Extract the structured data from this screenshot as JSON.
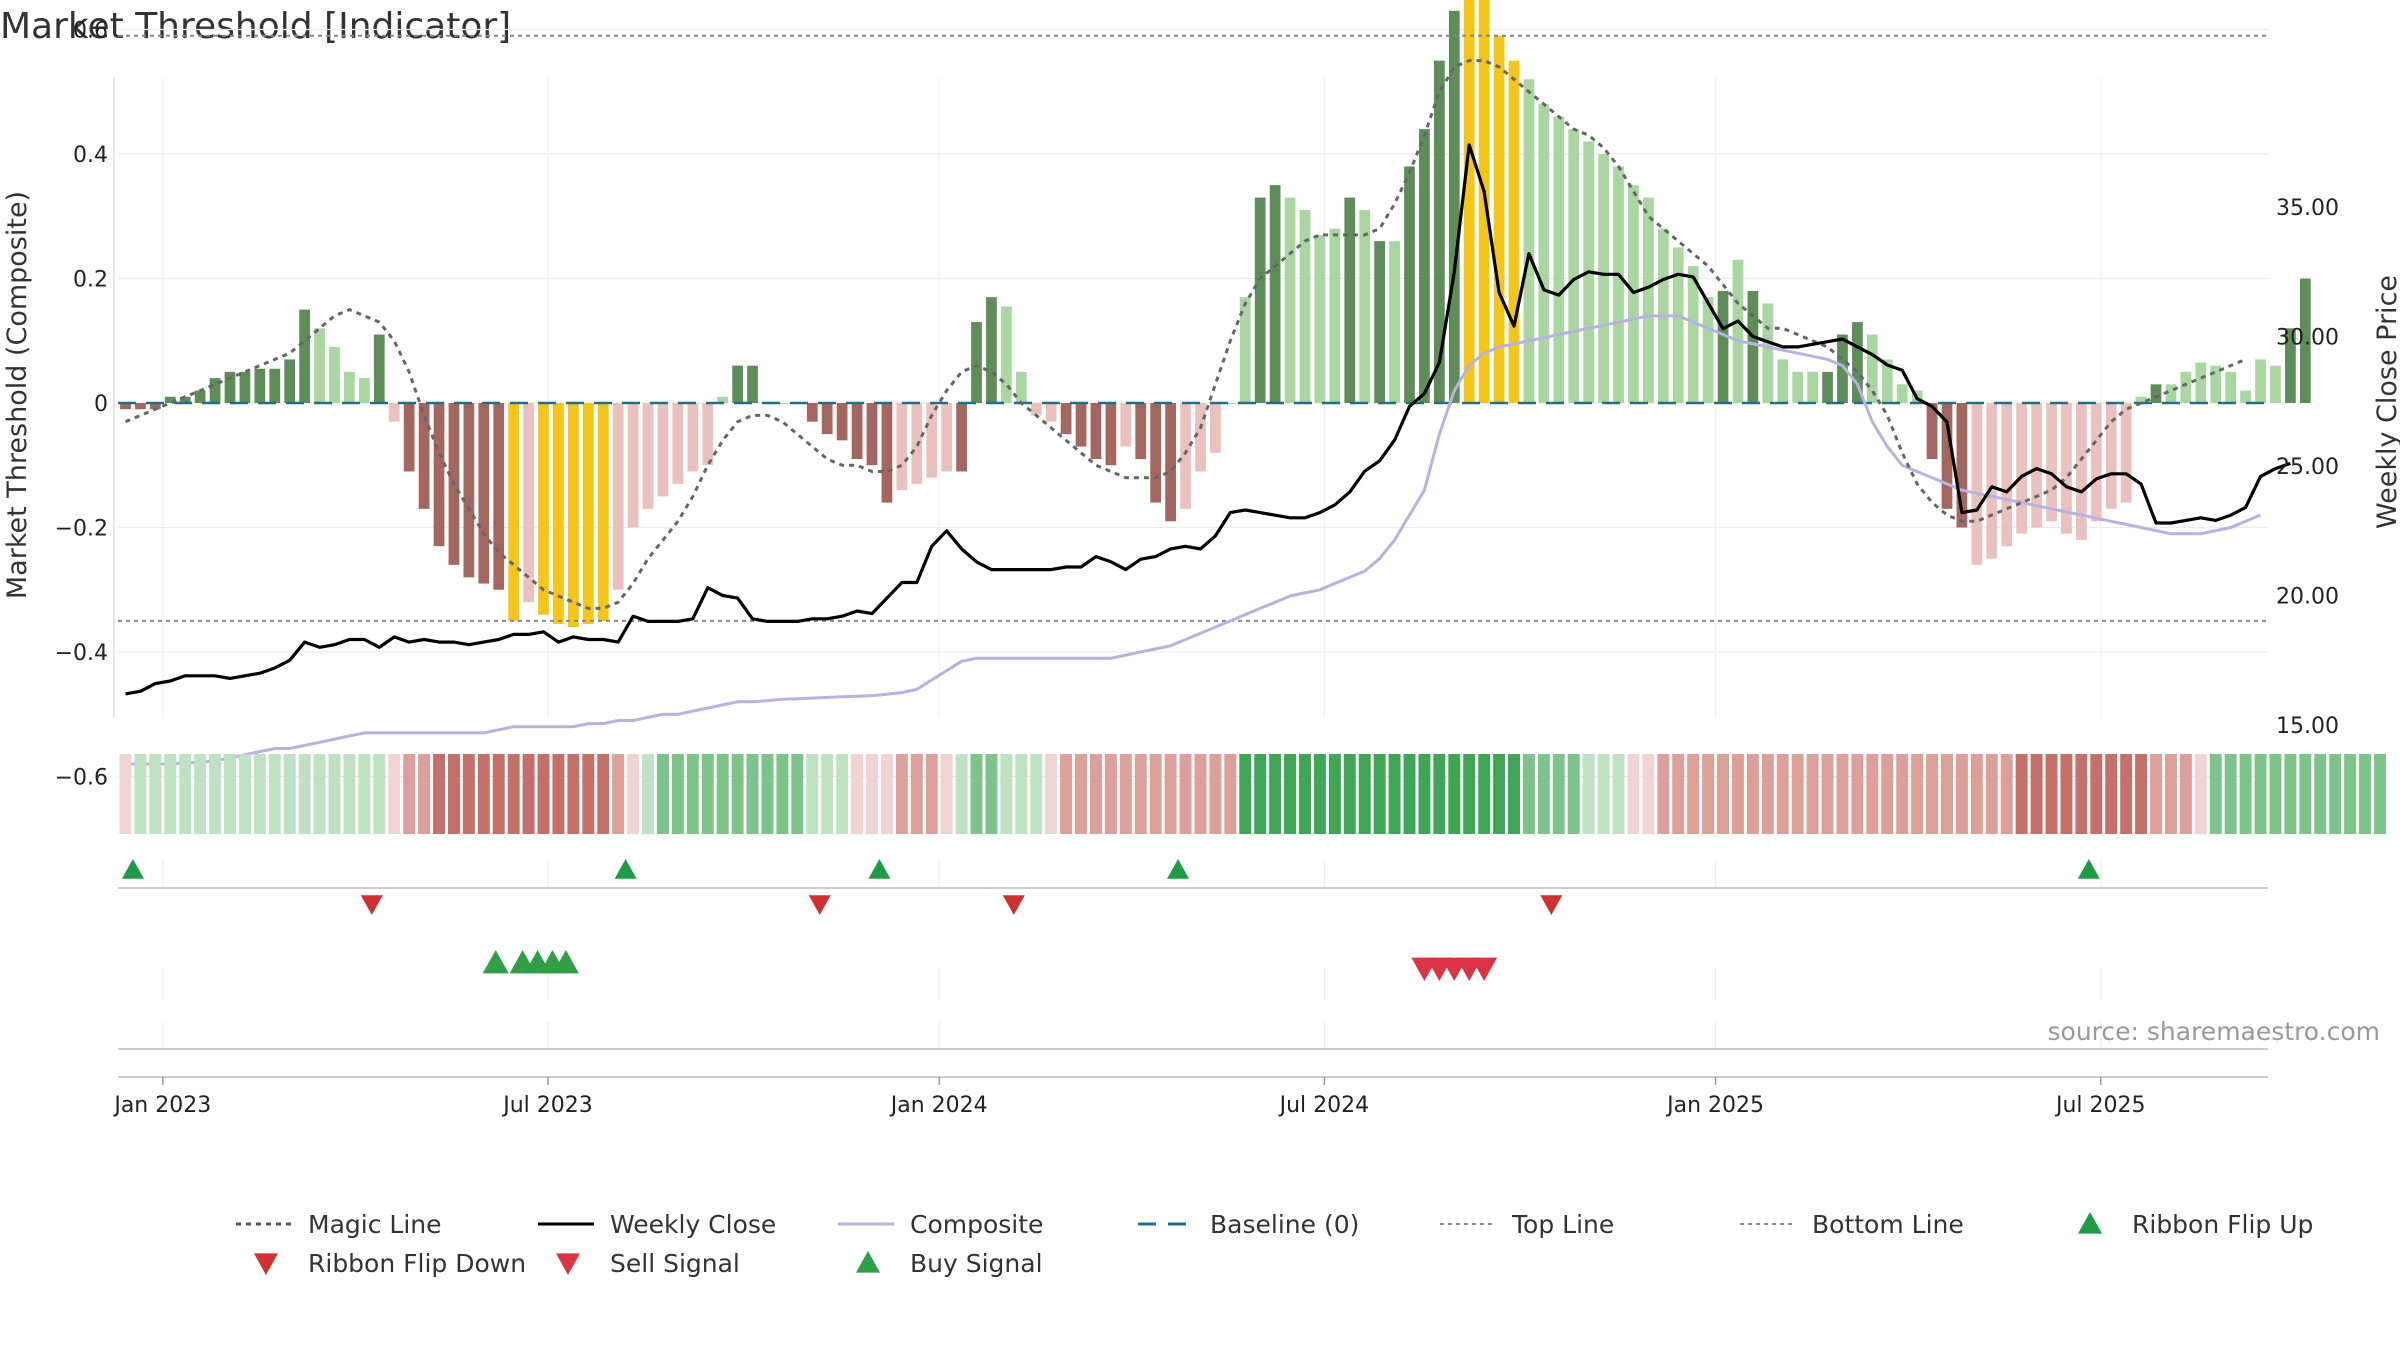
{
  "chart_data": {
    "type": "bar",
    "title": "Market Threshold [Indicator]",
    "ylabel_left": "Market Threshold (Composite)",
    "ylabel_right": "Weekly Close Price",
    "ylim_left": [
      -0.78,
      0.78
    ],
    "ylim_right": [
      15.0,
      39.8
    ],
    "yticks_left": [
      "0.6",
      "0.4",
      "0.2",
      "0",
      "−0.2",
      "−0.4",
      "−0.6"
    ],
    "yticks_left_values": [
      0.6,
      0.4,
      0.2,
      0,
      -0.2,
      -0.4,
      -0.6
    ],
    "yticks_right": [
      "35.00",
      "30.00",
      "25.00",
      "20.00",
      "15.00"
    ],
    "yticks_right_values": [
      35,
      30,
      25,
      20,
      15
    ],
    "xticks": [
      "Jan 2023",
      "Jul 2023",
      "Jan 2024",
      "Jul 2024",
      "Jan 2025",
      "Jul 2025"
    ],
    "xtick_weeks": [
      3,
      28.8,
      55,
      80.8,
      107,
      132.8
    ],
    "grid": true,
    "top_line": 0.59,
    "bottom_line": -0.35,
    "baseline": 0,
    "weeks_total": 144,
    "composite_bars": [
      -0.01,
      -0.01,
      -0.01,
      0.01,
      0.01,
      0.02,
      0.04,
      0.05,
      0.05,
      0.055,
      0.055,
      0.07,
      0.15,
      0.12,
      0.09,
      0.05,
      0.04,
      0.11,
      -0.03,
      -0.11,
      -0.17,
      -0.23,
      -0.26,
      -0.28,
      -0.29,
      -0.3,
      -0.35,
      -0.32,
      -0.34,
      -0.355,
      -0.36,
      -0.355,
      -0.35,
      -0.3,
      -0.2,
      -0.17,
      -0.15,
      -0.13,
      -0.11,
      -0.1,
      0.01,
      0.06,
      0.06,
      0,
      0,
      0,
      -0.03,
      -0.05,
      -0.06,
      -0.09,
      -0.1,
      -0.16,
      -0.14,
      -0.13,
      -0.12,
      -0.11,
      -0.11,
      0.13,
      0.17,
      0.155,
      0.05,
      -0.02,
      -0.03,
      -0.05,
      -0.07,
      -0.09,
      -0.1,
      -0.07,
      -0.09,
      -0.16,
      -0.19,
      -0.17,
      -0.11,
      -0.08,
      0,
      0.17,
      0.33,
      0.35,
      0.33,
      0.31,
      0.27,
      0.28,
      0.33,
      0.31,
      0.26,
      0.26,
      0.38,
      0.44,
      0.55,
      0.63,
      0.71,
      0.66,
      0.59,
      0.55,
      0.52,
      0.48,
      0.46,
      0.44,
      0.42,
      0.4,
      0.38,
      0.35,
      0.33,
      0.28,
      0.25,
      0.22,
      0.17,
      0.18,
      0.23,
      0.18,
      0.16,
      0.07,
      0.05,
      0.05,
      0.05,
      0.11,
      0.13,
      0.11,
      0.07,
      0.03,
      0.02,
      -0.09,
      -0.17,
      -0.2,
      -0.26,
      -0.25,
      -0.23,
      -0.21,
      -0.2,
      -0.19,
      -0.21,
      -0.22,
      -0.19,
      -0.17,
      -0.16,
      0.01,
      0.03,
      0.03,
      0.05,
      0.065,
      0.06,
      0.05,
      0.02,
      0.07,
      0.06,
      0.12,
      0.2
    ],
    "bar_style": "d,d,d,d,d,d,d,d,d,d,d,d,d,l,l,l,l,d,l,d,d,d,d,d,d,d,y,l,y,y,y,y,y,l,l,l,l,l,l,l,l,d,d,l,l,l,d,d,d,d,d,d,l,l,l,l,d,d,d,l,l,l,l,d,d,d,d,l,d,d,d,l,l,l,l,l,d,d,l,l,l,l,d,l,d,l,d,d,d,d,y,y,y,y,l,l,l,l,l,l,l,l,l,l,l,l,l,d,l,d,l,l,l,l,d,d,d,l,l,l,l,d,d,d,l,l,l,l,l,l,l,l,l,l,l,l,d,l,l,l,l,l,l,l,l,d,d",
    "magic_line": [
      -0.03,
      -0.02,
      -0.01,
      0.0,
      0.01,
      0.02,
      0.03,
      0.04,
      0.05,
      0.06,
      0.07,
      0.08,
      0.1,
      0.12,
      0.14,
      0.15,
      0.14,
      0.13,
      0.1,
      0.05,
      -0.02,
      -0.08,
      -0.13,
      -0.17,
      -0.21,
      -0.24,
      -0.26,
      -0.28,
      -0.3,
      -0.31,
      -0.32,
      -0.33,
      -0.33,
      -0.32,
      -0.29,
      -0.25,
      -0.22,
      -0.19,
      -0.15,
      -0.1,
      -0.06,
      -0.03,
      -0.02,
      -0.02,
      -0.03,
      -0.05,
      -0.07,
      -0.09,
      -0.1,
      -0.1,
      -0.11,
      -0.11,
      -0.1,
      -0.07,
      -0.02,
      0.02,
      0.05,
      0.06,
      0.05,
      0.03,
      0.0,
      -0.02,
      -0.04,
      -0.06,
      -0.08,
      -0.1,
      -0.11,
      -0.12,
      -0.12,
      -0.12,
      -0.11,
      -0.08,
      -0.04,
      0.03,
      0.1,
      0.16,
      0.2,
      0.22,
      0.24,
      0.26,
      0.27,
      0.27,
      0.27,
      0.27,
      0.28,
      0.32,
      0.37,
      0.43,
      0.5,
      0.54,
      0.55,
      0.55,
      0.54,
      0.52,
      0.5,
      0.48,
      0.46,
      0.44,
      0.43,
      0.41,
      0.38,
      0.34,
      0.3,
      0.28,
      0.26,
      0.24,
      0.22,
      0.19,
      0.16,
      0.14,
      0.12,
      0.12,
      0.11,
      0.1,
      0.09,
      0.07,
      0.05,
      0.02,
      -0.02,
      -0.08,
      -0.13,
      -0.16,
      -0.18,
      -0.19,
      -0.19,
      -0.18,
      -0.17,
      -0.16,
      -0.15,
      -0.14,
      -0.12,
      -0.09,
      -0.06,
      -0.03,
      -0.01,
      0.0,
      0.01,
      0.02,
      0.03,
      0.04,
      0.05,
      0.06,
      0.07
    ],
    "composite_line": [
      -0.58,
      -0.58,
      -0.58,
      -0.58,
      -0.578,
      -0.577,
      -0.575,
      -0.57,
      -0.565,
      -0.56,
      -0.555,
      -0.555,
      -0.55,
      -0.545,
      -0.54,
      -0.535,
      -0.53,
      -0.53,
      -0.53,
      -0.53,
      -0.53,
      -0.53,
      -0.53,
      -0.53,
      -0.53,
      -0.525,
      -0.52,
      -0.52,
      -0.52,
      -0.52,
      -0.52,
      -0.515,
      -0.515,
      -0.51,
      -0.51,
      -0.505,
      -0.5,
      -0.5,
      -0.495,
      -0.49,
      -0.485,
      -0.48,
      -0.48,
      -0.478,
      -0.476,
      -0.475,
      -0.474,
      -0.473,
      -0.472,
      -0.471,
      -0.47,
      -0.468,
      -0.465,
      -0.46,
      -0.445,
      -0.43,
      -0.415,
      -0.41,
      -0.41,
      -0.41,
      -0.41,
      -0.41,
      -0.41,
      -0.41,
      -0.41,
      -0.41,
      -0.41,
      -0.405,
      -0.4,
      -0.395,
      -0.39,
      -0.38,
      -0.37,
      -0.36,
      -0.35,
      -0.34,
      -0.33,
      -0.32,
      -0.31,
      -0.305,
      -0.3,
      -0.29,
      -0.28,
      -0.27,
      -0.25,
      -0.22,
      -0.18,
      -0.14,
      -0.05,
      0.02,
      0.06,
      0.08,
      0.09,
      0.095,
      0.1,
      0.105,
      0.11,
      0.115,
      0.12,
      0.125,
      0.13,
      0.135,
      0.14,
      0.14,
      0.14,
      0.13,
      0.12,
      0.11,
      0.1,
      0.095,
      0.09,
      0.085,
      0.08,
      0.075,
      0.07,
      0.06,
      0.03,
      -0.03,
      -0.07,
      -0.1,
      -0.11,
      -0.12,
      -0.13,
      -0.14,
      -0.145,
      -0.15,
      -0.155,
      -0.16,
      -0.165,
      -0.17,
      -0.175,
      -0.18,
      -0.185,
      -0.19,
      -0.195,
      -0.2,
      -0.205,
      -0.21,
      -0.21,
      -0.21,
      -0.205,
      -0.2,
      -0.19,
      -0.18
    ],
    "weekly_close": [
      16.2,
      16.3,
      16.6,
      16.7,
      16.9,
      16.9,
      16.9,
      16.8,
      16.9,
      17.0,
      17.2,
      17.5,
      18.2,
      18.0,
      18.1,
      18.3,
      18.3,
      18.0,
      18.4,
      18.2,
      18.3,
      18.2,
      18.2,
      18.1,
      18.2,
      18.3,
      18.5,
      18.5,
      18.6,
      18.2,
      18.4,
      18.3,
      18.3,
      18.2,
      19.2,
      19.0,
      19.0,
      19.0,
      19.1,
      20.3,
      20.0,
      19.9,
      19.1,
      19.0,
      19.0,
      19.0,
      19.1,
      19.1,
      19.2,
      19.4,
      19.3,
      19.9,
      20.5,
      20.5,
      21.9,
      22.5,
      21.8,
      21.3,
      21.0,
      21.0,
      21.0,
      21.0,
      21.0,
      21.1,
      21.1,
      21.5,
      21.3,
      21.0,
      21.4,
      21.5,
      21.8,
      21.9,
      21.8,
      22.3,
      23.2,
      23.3,
      23.2,
      23.1,
      23.0,
      23.0,
      23.2,
      23.5,
      24.0,
      24.8,
      25.2,
      26.0,
      27.3,
      27.8,
      29.0,
      32.5,
      37.4,
      35.6,
      31.7,
      30.4,
      33.2,
      31.8,
      31.6,
      32.2,
      32.5,
      32.4,
      32.4,
      31.7,
      31.9,
      32.2,
      32.4,
      32.3,
      31.3,
      30.3,
      30.6,
      30.0,
      29.8,
      29.6,
      29.6,
      29.7,
      29.8,
      29.9,
      29.6,
      29.3,
      28.9,
      28.7,
      27.6,
      27.3,
      26.7,
      23.2,
      23.3,
      24.2,
      24.0,
      24.6,
      24.9,
      24.7,
      24.2,
      24.0,
      24.5,
      24.7,
      24.7,
      24.3,
      22.8,
      22.8,
      22.9,
      23.0,
      22.9,
      23.1,
      23.4,
      24.6,
      24.9,
      25.1
    ],
    "ribbon": [
      "rl",
      "gl",
      "gl",
      "gl",
      "gl",
      "gl",
      "gl",
      "gl",
      "gl",
      "gl",
      "gl",
      "gl",
      "gl",
      "gl",
      "gl",
      "gl",
      "gl",
      "gl",
      "rl",
      "rm",
      "rm",
      "rd",
      "rd",
      "rd",
      "rd",
      "rd",
      "rd",
      "rd",
      "rd",
      "rd",
      "rd",
      "rd",
      "rd",
      "rm",
      "rl",
      "gl",
      "gm",
      "gm",
      "gm",
      "gm",
      "gm",
      "gm",
      "gm",
      "gm",
      "gm",
      "gm",
      "gl",
      "gl",
      "gl",
      "rl",
      "rl",
      "rl",
      "rm",
      "rm",
      "rm",
      "rl",
      "gl",
      "gm",
      "gm",
      "gl",
      "gl",
      "gl",
      "rl",
      "rm",
      "rm",
      "rm",
      "rm",
      "rm",
      "rm",
      "rm",
      "rm",
      "rm",
      "rm",
      "rm",
      "rm",
      "gd",
      "gd",
      "gd",
      "gd",
      "gd",
      "gd",
      "gd",
      "gd",
      "gd",
      "gd",
      "gd",
      "gd",
      "gd",
      "gd",
      "gd",
      "gd",
      "gd",
      "gd",
      "gd",
      "gm",
      "gm",
      "gm",
      "gm",
      "gl",
      "gl",
      "gl",
      "rl",
      "rl",
      "rm",
      "rm",
      "rm",
      "rm",
      "rm",
      "rm",
      "rm",
      "rm",
      "rm",
      "rm",
      "rm",
      "rm",
      "rm",
      "rm",
      "rm",
      "rm",
      "rm",
      "rm",
      "rm",
      "rm",
      "rm",
      "rm",
      "rm",
      "rm",
      "rd",
      "rd",
      "rd",
      "rd",
      "rd",
      "rd",
      "rd",
      "rd",
      "rd",
      "rm",
      "rm",
      "rm",
      "rl",
      "gm",
      "gm",
      "gm",
      "gm",
      "gm",
      "gm",
      "gm",
      "gm",
      "gm",
      "gm",
      "gm",
      "gm"
    ],
    "ribbon_flip_up_weeks": [
      1,
      34,
      51,
      71,
      132
    ],
    "ribbon_flip_down_weeks": [
      17,
      47,
      60,
      96
    ],
    "buy_signal_weeks": [
      25.3,
      27.1,
      28.1,
      29.1,
      30.0
    ],
    "sell_signal_weeks": [
      87.5,
      88.5,
      89.5,
      90.5,
      91.5
    ],
    "legend": [
      {
        "label": "Magic Line",
        "kind": "dotted",
        "color": "#555555"
      },
      {
        "label": "Weekly Close",
        "kind": "solid",
        "color": "#000000"
      },
      {
        "label": "Composite",
        "kind": "solid-light",
        "color": "#b8b2e0"
      },
      {
        "label": "Baseline (0)",
        "kind": "dashed",
        "color": "#1f6f8b"
      },
      {
        "label": "Top Line",
        "kind": "dotted-thin",
        "color": "#888888"
      },
      {
        "label": "Bottom Line",
        "kind": "dotted-thin",
        "color": "#888888"
      },
      {
        "label": "Ribbon Flip Up",
        "kind": "triangle-up",
        "color": "#1e9b45"
      },
      {
        "label": "Ribbon Flip Down",
        "kind": "triangle-down",
        "color": "#d03030"
      },
      {
        "label": "Sell Signal",
        "kind": "triangle-down",
        "color": "#dd3344"
      },
      {
        "label": "Buy Signal",
        "kind": "triangle-up",
        "color": "#2f9e44"
      }
    ],
    "source": "source: sharemaestro.com",
    "colors": {
      "bar_dark_green": "#5e8d5a",
      "bar_light_green": "#a9d6a1",
      "bar_dark_red": "#a4675f",
      "bar_light_red": "#eac1bc",
      "bar_yellow": "#f5c518",
      "ribbon_green_dark": "#3ea655",
      "ribbon_green_mid": "#7cc489",
      "ribbon_green_light": "#bfe2c2",
      "ribbon_red_dark": "#c46f69",
      "ribbon_red_mid": "#dc9f9a",
      "ribbon_red_light": "#f0d4d1"
    }
  }
}
